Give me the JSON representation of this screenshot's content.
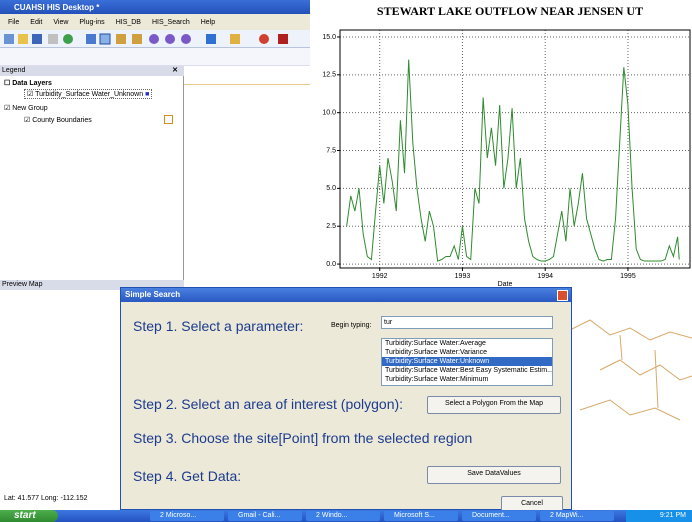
{
  "window": {
    "title": "CUAHSI HIS Desktop *",
    "menu": [
      "File",
      "Edit",
      "View",
      "Plug-ins",
      "HIS_DB",
      "HIS_Search",
      "Help"
    ]
  },
  "legend": {
    "title": "Legend",
    "groups": [
      {
        "label": "Data Layers",
        "layers": [
          "Turbidity_Surface Water_Unknown"
        ]
      },
      {
        "label": "New Group",
        "layers": [
          "County Boundaries"
        ]
      }
    ]
  },
  "preview_map": {
    "title": "Preview Map"
  },
  "status": "Lat: 41.577 Long: -112.152",
  "dialog": {
    "title": "Simple Search",
    "step1": "Step 1. Select a parameter:",
    "begin_typing": "Begin typing:",
    "search_text": "tur",
    "parameters": [
      "Turbidity:Surface Water:Average",
      "Turbidity:Surface Water:Variance",
      "Turbidity:Surface Water:Unknown",
      "Turbidity:Surface Water:Best Easy Systematic Estim...",
      "Turbidity:Surface Water:Minimum"
    ],
    "step2": "Step 2. Select an area of interest (polygon):",
    "polygon_button": "Select  a Polygon From the Map",
    "step3": "Step 3. Choose the site[Point] from the selected region",
    "step4": "Step 4. Get Data:",
    "save_button": "Save DataValues",
    "cancel_button": "Cancel"
  },
  "taskbar": {
    "start": "start",
    "items": [
      "2 Microso...",
      "Gmail - Cali...",
      "2 Windo...",
      "Microsoft S...",
      "Document...",
      "2 MapWi..."
    ],
    "clock": "9:21 PM"
  },
  "chart_data": {
    "type": "line",
    "title": "STEWART LAKE OUTFLOW NEAR JENSEN UT",
    "xlabel": "Date",
    "color": "#2e8b2e",
    "grid": true,
    "x": [
      1991.6,
      1991.65,
      1991.7,
      1991.75,
      1991.8,
      1991.85,
      1991.9,
      1991.95,
      1992.0,
      1992.05,
      1992.1,
      1992.15,
      1992.2,
      1992.25,
      1992.3,
      1992.35,
      1992.4,
      1992.45,
      1992.5,
      1992.55,
      1992.6,
      1992.65,
      1992.7,
      1992.75,
      1992.8,
      1992.85,
      1992.9,
      1992.95,
      1993.0,
      1993.05,
      1993.1,
      1993.15,
      1993.2,
      1993.25,
      1993.3,
      1993.35,
      1993.4,
      1993.45,
      1993.5,
      1993.55,
      1993.6,
      1993.65,
      1993.7,
      1993.75,
      1993.8,
      1993.85,
      1993.9,
      1993.95,
      1994.0,
      1994.05,
      1994.1,
      1994.15,
      1994.2,
      1994.25,
      1994.3,
      1994.35,
      1994.4,
      1994.45,
      1994.5,
      1994.55,
      1994.6,
      1994.65,
      1994.7,
      1994.75,
      1994.8,
      1994.85,
      1994.9,
      1994.95,
      1995.0,
      1995.05,
      1995.1,
      1995.15,
      1995.2,
      1995.3,
      1995.4,
      1995.45,
      1995.5,
      1995.55,
      1995.6,
      1995.62
    ],
    "values": [
      2.5,
      4.5,
      3.5,
      5,
      2,
      0.5,
      0.3,
      3.5,
      6.5,
      4,
      7,
      5.5,
      3.5,
      9.5,
      6,
      13.5,
      8,
      5,
      3,
      1.5,
      3.5,
      2.5,
      0.2,
      0.3,
      0.5,
      0.5,
      1.2,
      0.3,
      2.5,
      0.5,
      0.3,
      5,
      4,
      11,
      7,
      9,
      6.5,
      10.5,
      5,
      7,
      10.3,
      5,
      7,
      3,
      1.5,
      0.5,
      0.3,
      0.2,
      0.2,
      0.3,
      0.5,
      2,
      3.5,
      1.5,
      5,
      2.5,
      4,
      6,
      3,
      2,
      1,
      0.3,
      0.2,
      0.3,
      0.3,
      3,
      8,
      13,
      10.5,
      5,
      1,
      0.3,
      0.2,
      0.2,
      0.2,
      0.3,
      1.2,
      0.5,
      1.8,
      0.3
    ],
    "xlim": [
      1991.52,
      1995.75
    ],
    "ylim": [
      -0.26,
      15.46
    ],
    "xticks": [
      1992,
      1993,
      1994,
      1995
    ],
    "yticks": [
      {
        "value": 0,
        "label": "0.0"
      },
      2.5,
      {
        "value": 5,
        "label": "5.0"
      },
      7.5,
      {
        "value": 10,
        "label": "10.0"
      },
      12.5,
      {
        "value": 15,
        "label": "15.0"
      }
    ]
  }
}
